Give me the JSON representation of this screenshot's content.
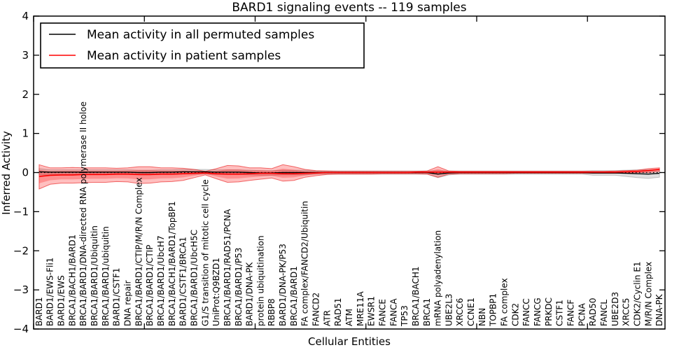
{
  "chart_data": {
    "type": "line",
    "title": "BARD1 signaling events -- 119 samples",
    "xlabel": "Cellular Entities",
    "ylabel": "Inferred Activity",
    "ylim": [
      -4,
      4
    ],
    "yticks": [
      4,
      3,
      2,
      1,
      0,
      -1,
      -2,
      -3,
      -4
    ],
    "ytick_labels": [
      "4",
      "3",
      "2",
      "1",
      "0",
      "−1",
      "−2",
      "−3",
      "−4"
    ],
    "x_major_tick_step": 10,
    "grid": false,
    "zero_line": "dotted",
    "legend_position": "upper left",
    "legend": [
      {
        "label": "Mean activity in all permuted samples",
        "color": "#000000"
      },
      {
        "label": "Mean activity in patient samples",
        "color": "#ff0000"
      }
    ],
    "categories": [
      "BARD1",
      "BARD1/EWS-Fli1",
      "BARD1/EWS",
      "BRCA1/BACH1/BARD1",
      "BRCA1/BARD1/DNA-directed RNA polymerase II holoe",
      "BRCA1/BARD1/Ubiquitin",
      "BRCA1/BARD1/ubiquitin",
      "BARD1/CSTF1",
      "DNA repair",
      "BRCA1/BARD1/CTIP/M/R/N Complex",
      "BRCA1/BARD1/CTIP",
      "BRCA1/BARD1/UbcH7",
      "BRCA1/BACH1/BARD1/TopBP1",
      "BARD1/CSTF1/BRCA1",
      "BRCA1/BARD1/UbcH5C",
      "G1/S transition of mitotic cell cycle",
      "UniProt:Q9BZD1",
      "BRCA1/BARD1/RAD51/PCNA",
      "BRCA1/BARD1/P53",
      "BARD1/DNA-PK",
      "protein ubiquitination",
      "RBBP8",
      "BARD1/DNA-PK/P53",
      "BRCA1/BARD1",
      "FA complex/FANCD2/Ubiquitin",
      "FANCD2",
      "ATR",
      "RAD51",
      "ATM",
      "MRE11A",
      "EWSR1",
      "FANCE",
      "FANCA",
      "TP53",
      "BRCA1/BACH1",
      "BRCA1",
      "mRNA polyadenylation",
      "UBE2L3",
      "XRCC6",
      "CCNE1",
      "NBN",
      "TOPBP1",
      "FA complex",
      "CDK2",
      "FANCC",
      "FANCG",
      "PRKDC",
      "CSTF1",
      "FANCF",
      "PCNA",
      "RAD50",
      "FANCL",
      "UBE2D3",
      "XRCC5",
      "CDK2/Cyclin E1",
      "M/R/N Complex",
      "DNA-PK"
    ],
    "series": [
      {
        "name": "Mean activity in all permuted samples",
        "color": "#000000",
        "band_fill": "rgba(110,110,110,0.22)",
        "band_edge": "rgba(110,110,110,0.35)",
        "values": [
          0.02,
          0.01,
          0.01,
          0.01,
          0.01,
          0.01,
          0.01,
          0.01,
          0.01,
          0.0,
          0.0,
          0.01,
          0.01,
          0.02,
          0.02,
          0.02,
          0.01,
          0.01,
          0.01,
          0.0,
          -0.01,
          -0.01,
          0.0,
          0.0,
          0.0,
          0.0,
          0.0,
          0.0,
          0.0,
          0.0,
          0.0,
          0.0,
          0.0,
          0.0,
          0.0,
          0.0,
          -0.04,
          -0.01,
          0.0,
          0.0,
          0.0,
          0.0,
          0.0,
          0.0,
          0.0,
          0.0,
          0.0,
          0.0,
          0.0,
          0.0,
          -0.01,
          -0.01,
          -0.01,
          -0.02,
          -0.03,
          -0.04,
          -0.02
        ],
        "band_hi": [
          0.1,
          0.07,
          0.07,
          0.07,
          0.07,
          0.07,
          0.07,
          0.07,
          0.07,
          0.06,
          0.06,
          0.07,
          0.07,
          0.08,
          0.08,
          0.08,
          0.07,
          0.07,
          0.07,
          0.06,
          0.05,
          0.05,
          0.06,
          0.06,
          0.06,
          0.04,
          0.04,
          0.04,
          0.04,
          0.04,
          0.04,
          0.04,
          0.04,
          0.04,
          0.04,
          0.04,
          0.05,
          0.04,
          0.04,
          0.04,
          0.04,
          0.04,
          0.04,
          0.04,
          0.04,
          0.04,
          0.04,
          0.04,
          0.04,
          0.04,
          0.05,
          0.05,
          0.05,
          0.06,
          0.07,
          0.07,
          0.08
        ],
        "band_lo": [
          -0.06,
          -0.05,
          -0.05,
          -0.05,
          -0.05,
          -0.05,
          -0.05,
          -0.05,
          -0.05,
          -0.06,
          -0.06,
          -0.05,
          -0.05,
          -0.04,
          -0.04,
          -0.04,
          -0.05,
          -0.05,
          -0.05,
          -0.06,
          -0.07,
          -0.07,
          -0.06,
          -0.06,
          -0.06,
          -0.04,
          -0.04,
          -0.04,
          -0.04,
          -0.04,
          -0.04,
          -0.04,
          -0.04,
          -0.04,
          -0.04,
          -0.04,
          -0.13,
          -0.06,
          -0.04,
          -0.04,
          -0.04,
          -0.04,
          -0.04,
          -0.04,
          -0.04,
          -0.04,
          -0.04,
          -0.04,
          -0.04,
          -0.04,
          -0.07,
          -0.07,
          -0.07,
          -0.1,
          -0.13,
          -0.15,
          -0.12
        ]
      },
      {
        "name": "Mean activity in patient samples",
        "color": "#ff0000",
        "band_fill": "rgba(255,0,0,0.25)",
        "band_edge": "rgba(230,0,0,0.55)",
        "inner_band_scale": 0.55,
        "values": [
          -0.1,
          -0.07,
          -0.06,
          -0.06,
          -0.05,
          -0.05,
          -0.05,
          -0.04,
          -0.04,
          -0.05,
          -0.05,
          -0.04,
          -0.04,
          -0.03,
          -0.02,
          -0.01,
          -0.03,
          -0.04,
          -0.04,
          -0.03,
          -0.02,
          -0.02,
          -0.03,
          -0.03,
          -0.02,
          -0.01,
          0.0,
          0.0,
          0.0,
          0.0,
          0.0,
          0.0,
          0.0,
          0.0,
          0.01,
          0.01,
          0.01,
          0.01,
          0.01,
          0.01,
          0.01,
          0.01,
          0.01,
          0.01,
          0.01,
          0.01,
          0.01,
          0.01,
          0.01,
          0.01,
          0.01,
          0.01,
          0.01,
          0.02,
          0.03,
          0.05,
          0.08
        ],
        "band_hi": [
          0.2,
          0.12,
          0.12,
          0.13,
          0.12,
          0.12,
          0.12,
          0.11,
          0.12,
          0.15,
          0.15,
          0.12,
          0.12,
          0.11,
          0.08,
          0.03,
          0.1,
          0.18,
          0.17,
          0.12,
          0.12,
          0.1,
          0.2,
          0.15,
          0.08,
          0.05,
          0.04,
          0.03,
          0.03,
          0.03,
          0.03,
          0.03,
          0.03,
          0.03,
          0.03,
          0.04,
          0.15,
          0.04,
          0.03,
          0.03,
          0.03,
          0.03,
          0.03,
          0.03,
          0.03,
          0.03,
          0.03,
          0.03,
          0.03,
          0.03,
          0.03,
          0.03,
          0.04,
          0.05,
          0.06,
          0.1,
          0.12
        ],
        "band_lo": [
          -0.42,
          -0.3,
          -0.27,
          -0.27,
          -0.26,
          -0.25,
          -0.25,
          -0.23,
          -0.24,
          -0.28,
          -0.27,
          -0.24,
          -0.23,
          -0.2,
          -0.13,
          -0.06,
          -0.16,
          -0.25,
          -0.24,
          -0.2,
          -0.17,
          -0.14,
          -0.22,
          -0.2,
          -0.12,
          -0.08,
          -0.05,
          -0.04,
          -0.04,
          -0.04,
          -0.04,
          -0.03,
          -0.03,
          -0.03,
          -0.03,
          -0.04,
          -0.12,
          -0.04,
          -0.03,
          -0.03,
          -0.03,
          -0.03,
          -0.03,
          -0.02,
          -0.02,
          -0.02,
          -0.02,
          -0.02,
          -0.02,
          -0.02,
          -0.02,
          -0.02,
          -0.02,
          -0.01,
          0.0,
          0.0,
          0.03
        ]
      }
    ]
  }
}
